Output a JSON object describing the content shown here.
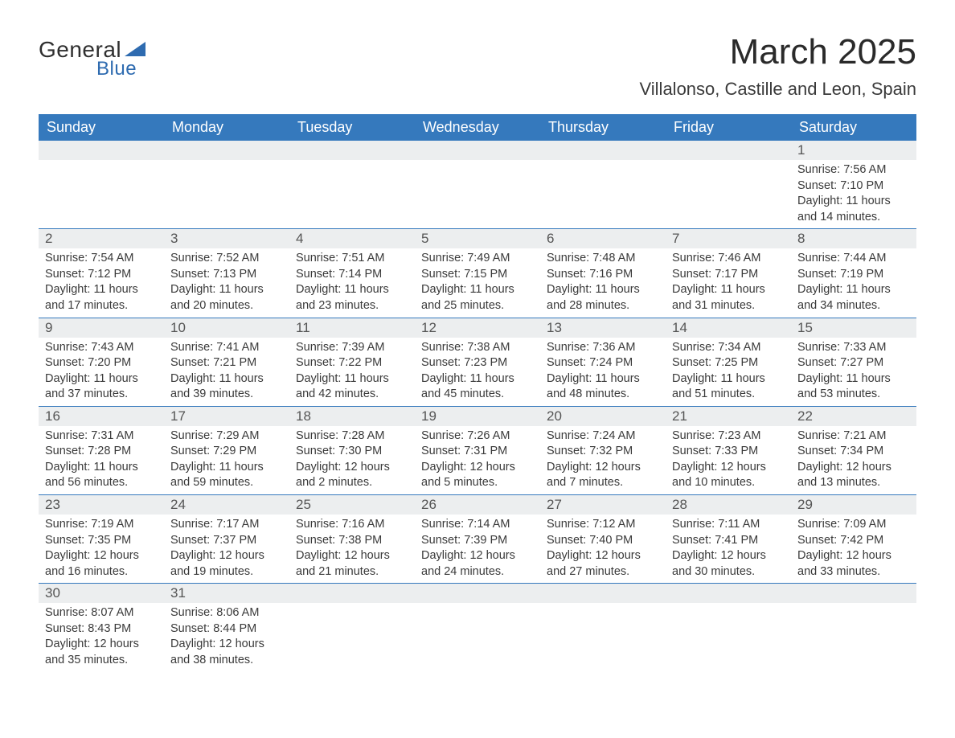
{
  "logo": {
    "text_main": "General",
    "text_sub": "Blue",
    "accent_color": "#2e6bb0"
  },
  "title": {
    "month": "March 2025",
    "location": "Villalonso, Castille and Leon, Spain",
    "month_fontsize": 44,
    "location_fontsize": 22,
    "text_color": "#2a2a2a"
  },
  "calendar": {
    "header_bg": "#3579bd",
    "header_text_color": "#ffffff",
    "row_divider_color": "#3579bd",
    "daynum_bg": "#eceeef",
    "dows": [
      "Sunday",
      "Monday",
      "Tuesday",
      "Wednesday",
      "Thursday",
      "Friday",
      "Saturday"
    ],
    "weeks": [
      [
        {
          "empty": true
        },
        {
          "empty": true
        },
        {
          "empty": true
        },
        {
          "empty": true
        },
        {
          "empty": true
        },
        {
          "empty": true
        },
        {
          "n": "1",
          "sunrise": "Sunrise: 7:56 AM",
          "sunset": "Sunset: 7:10 PM",
          "day1": "Daylight: 11 hours",
          "day2": "and 14 minutes."
        }
      ],
      [
        {
          "n": "2",
          "sunrise": "Sunrise: 7:54 AM",
          "sunset": "Sunset: 7:12 PM",
          "day1": "Daylight: 11 hours",
          "day2": "and 17 minutes."
        },
        {
          "n": "3",
          "sunrise": "Sunrise: 7:52 AM",
          "sunset": "Sunset: 7:13 PM",
          "day1": "Daylight: 11 hours",
          "day2": "and 20 minutes."
        },
        {
          "n": "4",
          "sunrise": "Sunrise: 7:51 AM",
          "sunset": "Sunset: 7:14 PM",
          "day1": "Daylight: 11 hours",
          "day2": "and 23 minutes."
        },
        {
          "n": "5",
          "sunrise": "Sunrise: 7:49 AM",
          "sunset": "Sunset: 7:15 PM",
          "day1": "Daylight: 11 hours",
          "day2": "and 25 minutes."
        },
        {
          "n": "6",
          "sunrise": "Sunrise: 7:48 AM",
          "sunset": "Sunset: 7:16 PM",
          "day1": "Daylight: 11 hours",
          "day2": "and 28 minutes."
        },
        {
          "n": "7",
          "sunrise": "Sunrise: 7:46 AM",
          "sunset": "Sunset: 7:17 PM",
          "day1": "Daylight: 11 hours",
          "day2": "and 31 minutes."
        },
        {
          "n": "8",
          "sunrise": "Sunrise: 7:44 AM",
          "sunset": "Sunset: 7:19 PM",
          "day1": "Daylight: 11 hours",
          "day2": "and 34 minutes."
        }
      ],
      [
        {
          "n": "9",
          "sunrise": "Sunrise: 7:43 AM",
          "sunset": "Sunset: 7:20 PM",
          "day1": "Daylight: 11 hours",
          "day2": "and 37 minutes."
        },
        {
          "n": "10",
          "sunrise": "Sunrise: 7:41 AM",
          "sunset": "Sunset: 7:21 PM",
          "day1": "Daylight: 11 hours",
          "day2": "and 39 minutes."
        },
        {
          "n": "11",
          "sunrise": "Sunrise: 7:39 AM",
          "sunset": "Sunset: 7:22 PM",
          "day1": "Daylight: 11 hours",
          "day2": "and 42 minutes."
        },
        {
          "n": "12",
          "sunrise": "Sunrise: 7:38 AM",
          "sunset": "Sunset: 7:23 PM",
          "day1": "Daylight: 11 hours",
          "day2": "and 45 minutes."
        },
        {
          "n": "13",
          "sunrise": "Sunrise: 7:36 AM",
          "sunset": "Sunset: 7:24 PM",
          "day1": "Daylight: 11 hours",
          "day2": "and 48 minutes."
        },
        {
          "n": "14",
          "sunrise": "Sunrise: 7:34 AM",
          "sunset": "Sunset: 7:25 PM",
          "day1": "Daylight: 11 hours",
          "day2": "and 51 minutes."
        },
        {
          "n": "15",
          "sunrise": "Sunrise: 7:33 AM",
          "sunset": "Sunset: 7:27 PM",
          "day1": "Daylight: 11 hours",
          "day2": "and 53 minutes."
        }
      ],
      [
        {
          "n": "16",
          "sunrise": "Sunrise: 7:31 AM",
          "sunset": "Sunset: 7:28 PM",
          "day1": "Daylight: 11 hours",
          "day2": "and 56 minutes."
        },
        {
          "n": "17",
          "sunrise": "Sunrise: 7:29 AM",
          "sunset": "Sunset: 7:29 PM",
          "day1": "Daylight: 11 hours",
          "day2": "and 59 minutes."
        },
        {
          "n": "18",
          "sunrise": "Sunrise: 7:28 AM",
          "sunset": "Sunset: 7:30 PM",
          "day1": "Daylight: 12 hours",
          "day2": "and 2 minutes."
        },
        {
          "n": "19",
          "sunrise": "Sunrise: 7:26 AM",
          "sunset": "Sunset: 7:31 PM",
          "day1": "Daylight: 12 hours",
          "day2": "and 5 minutes."
        },
        {
          "n": "20",
          "sunrise": "Sunrise: 7:24 AM",
          "sunset": "Sunset: 7:32 PM",
          "day1": "Daylight: 12 hours",
          "day2": "and 7 minutes."
        },
        {
          "n": "21",
          "sunrise": "Sunrise: 7:23 AM",
          "sunset": "Sunset: 7:33 PM",
          "day1": "Daylight: 12 hours",
          "day2": "and 10 minutes."
        },
        {
          "n": "22",
          "sunrise": "Sunrise: 7:21 AM",
          "sunset": "Sunset: 7:34 PM",
          "day1": "Daylight: 12 hours",
          "day2": "and 13 minutes."
        }
      ],
      [
        {
          "n": "23",
          "sunrise": "Sunrise: 7:19 AM",
          "sunset": "Sunset: 7:35 PM",
          "day1": "Daylight: 12 hours",
          "day2": "and 16 minutes."
        },
        {
          "n": "24",
          "sunrise": "Sunrise: 7:17 AM",
          "sunset": "Sunset: 7:37 PM",
          "day1": "Daylight: 12 hours",
          "day2": "and 19 minutes."
        },
        {
          "n": "25",
          "sunrise": "Sunrise: 7:16 AM",
          "sunset": "Sunset: 7:38 PM",
          "day1": "Daylight: 12 hours",
          "day2": "and 21 minutes."
        },
        {
          "n": "26",
          "sunrise": "Sunrise: 7:14 AM",
          "sunset": "Sunset: 7:39 PM",
          "day1": "Daylight: 12 hours",
          "day2": "and 24 minutes."
        },
        {
          "n": "27",
          "sunrise": "Sunrise: 7:12 AM",
          "sunset": "Sunset: 7:40 PM",
          "day1": "Daylight: 12 hours",
          "day2": "and 27 minutes."
        },
        {
          "n": "28",
          "sunrise": "Sunrise: 7:11 AM",
          "sunset": "Sunset: 7:41 PM",
          "day1": "Daylight: 12 hours",
          "day2": "and 30 minutes."
        },
        {
          "n": "29",
          "sunrise": "Sunrise: 7:09 AM",
          "sunset": "Sunset: 7:42 PM",
          "day1": "Daylight: 12 hours",
          "day2": "and 33 minutes."
        }
      ],
      [
        {
          "n": "30",
          "sunrise": "Sunrise: 8:07 AM",
          "sunset": "Sunset: 8:43 PM",
          "day1": "Daylight: 12 hours",
          "day2": "and 35 minutes."
        },
        {
          "n": "31",
          "sunrise": "Sunrise: 8:06 AM",
          "sunset": "Sunset: 8:44 PM",
          "day1": "Daylight: 12 hours",
          "day2": "and 38 minutes."
        },
        {
          "empty": true
        },
        {
          "empty": true
        },
        {
          "empty": true
        },
        {
          "empty": true
        },
        {
          "empty": true
        }
      ]
    ]
  }
}
